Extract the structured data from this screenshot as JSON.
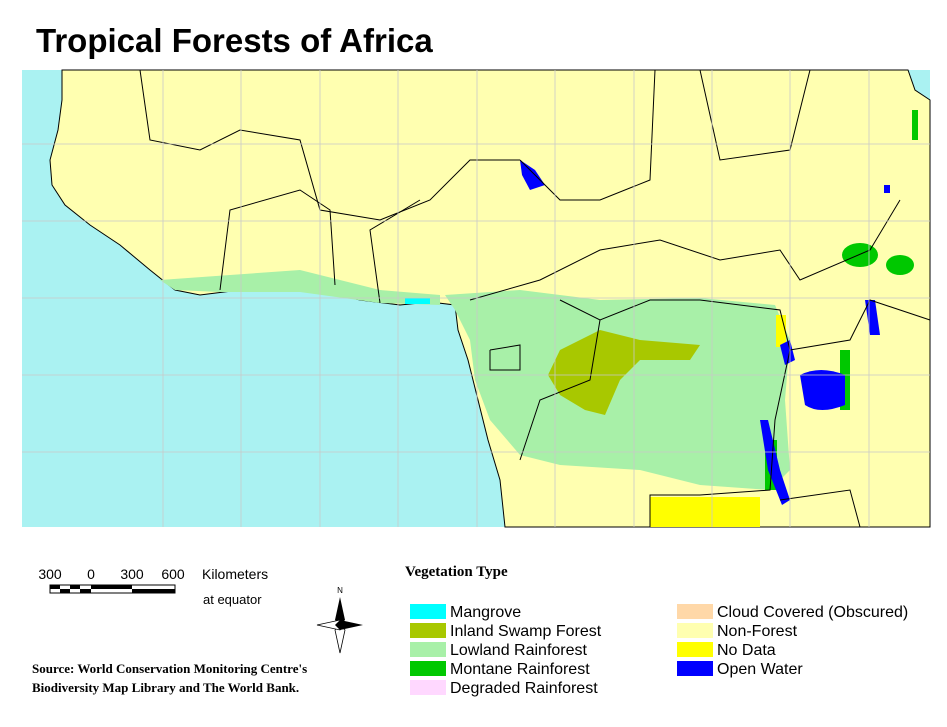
{
  "title": "Tropical Forests of Africa",
  "scale_bar": {
    "labels": [
      "300",
      "0",
      "300",
      "600"
    ],
    "unit": "Kilometers",
    "note": "at equator"
  },
  "north_arrow": "N",
  "legend": {
    "title": "Vegetation Type",
    "items": [
      {
        "label": "Mangrove",
        "color": "#00ffff"
      },
      {
        "label": "Inland Swamp Forest",
        "color": "#a8c800"
      },
      {
        "label": "Lowland Rainforest",
        "color": "#a8f0a8"
      },
      {
        "label": "Montane Rainforest",
        "color": "#00c800"
      },
      {
        "label": "Degraded Rainforest",
        "color": "#ffd8ff"
      },
      {
        "label": "Cloud Covered (Obscured)",
        "color": "#ffd8a8"
      },
      {
        "label": "Non-Forest",
        "color": "#ffffb0"
      },
      {
        "label": "No Data",
        "color": "#ffff00"
      },
      {
        "label": "Open Water",
        "color": "#0000ff"
      }
    ]
  },
  "source": [
    "Source: World Conservation Monitoring Centre's",
    "Biodiversity Map Library and The World Bank."
  ]
}
